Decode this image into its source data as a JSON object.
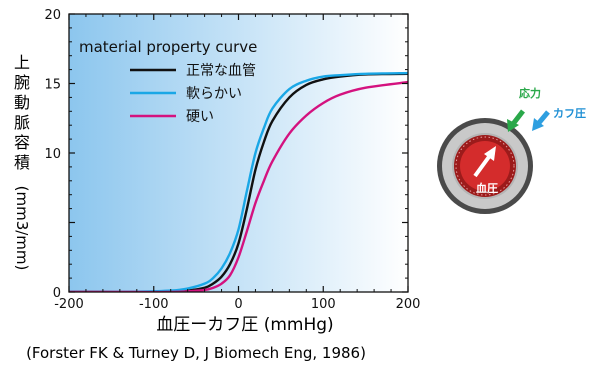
{
  "chart_data": {
    "type": "line",
    "title": "",
    "xlabel": "血圧ーカフ圧 (mmHg)",
    "ylabel_chars": [
      "上",
      "腕",
      "動",
      "脈",
      "容",
      "積"
    ],
    "ylabel_unit": "(mm3/mm)",
    "xlim": [
      -200,
      200
    ],
    "ylim": [
      0,
      20
    ],
    "xticks": [
      -200,
      -100,
      0,
      100,
      200
    ],
    "ytick_values": [
      0,
      5,
      10,
      15,
      20
    ],
    "ytick_labels": [
      "0",
      "",
      "10",
      "15",
      "20"
    ],
    "legend_title": "material property curve",
    "legend_position": "top-left",
    "grid": false,
    "background_gradient": [
      "#8cc6ee",
      "#ffffff"
    ],
    "series": [
      {
        "name": "正常な血管",
        "color": "#111111",
        "x": [
          -200,
          -160,
          -120,
          -80,
          -60,
          -40,
          -30,
          -20,
          -10,
          0,
          10,
          20,
          30,
          40,
          60,
          80,
          100,
          120,
          150,
          200
        ],
        "y": [
          0,
          0,
          0,
          0.05,
          0.1,
          0.3,
          0.6,
          1.1,
          2.0,
          3.5,
          6.0,
          8.8,
          10.8,
          12.3,
          14.0,
          14.9,
          15.3,
          15.5,
          15.65,
          15.7
        ]
      },
      {
        "name": "軟らかい",
        "color": "#1aa7e6",
        "x": [
          -200,
          -160,
          -120,
          -80,
          -60,
          -40,
          -30,
          -20,
          -10,
          0,
          10,
          20,
          30,
          40,
          60,
          80,
          100,
          120,
          150,
          200
        ],
        "y": [
          0,
          0,
          0.02,
          0.1,
          0.25,
          0.6,
          1.0,
          1.7,
          2.8,
          4.5,
          7.3,
          10.0,
          11.8,
          13.2,
          14.6,
          15.2,
          15.5,
          15.6,
          15.7,
          15.75
        ]
      },
      {
        "name": "硬い",
        "color": "#d4127f",
        "x": [
          -200,
          -160,
          -120,
          -80,
          -60,
          -40,
          -30,
          -20,
          -10,
          0,
          10,
          20,
          30,
          40,
          60,
          80,
          100,
          120,
          150,
          200
        ],
        "y": [
          0,
          0,
          0,
          0,
          0.05,
          0.15,
          0.3,
          0.6,
          1.2,
          2.5,
          4.4,
          6.4,
          8.0,
          9.4,
          11.4,
          12.7,
          13.6,
          14.2,
          14.7,
          15.1
        ]
      }
    ],
    "source_note": "(Forster FK & Turney D, J Biomech Eng, 1986)"
  },
  "diagram": {
    "label_center": "血圧",
    "label_force": "応力",
    "label_cuff": "カフ圧",
    "colors": {
      "outer_ring": "#4a4a4a",
      "cuff_ring": "#c9c9c9",
      "vessel_wall": "#9c1b1b",
      "lumen": "#d42c2c",
      "force_arrow": "#2aa84a",
      "cuff_arrow": "#2e9fe0",
      "label_force": "#2aa84a",
      "label_cuff": "#1f8fd4"
    }
  },
  "colors": {
    "axis": "#111111",
    "text": "#111111"
  }
}
